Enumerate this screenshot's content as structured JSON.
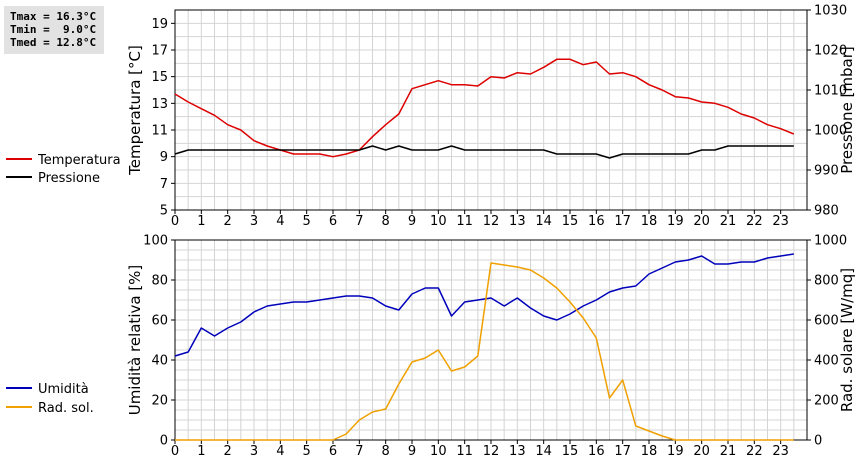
{
  "stats": {
    "tmax": "Tmax = 16.3°C",
    "tmin": "Tmin =  9.0°C",
    "tmed": "Tmed = 12.8°C"
  },
  "chart_data": [
    {
      "type": "line",
      "xlim": [
        0,
        24
      ],
      "x_ticks": [
        "0",
        "1",
        "2",
        "3",
        "4",
        "5",
        "6",
        "7",
        "8",
        "9",
        "10",
        "11",
        "12",
        "13",
        "14",
        "15",
        "16",
        "17",
        "18",
        "19",
        "20",
        "21",
        "22",
        "23"
      ],
      "ylabel_left": "Temperatura [°C]",
      "ylim_left": [
        5,
        20
      ],
      "yticks_left": [
        "5",
        "7",
        "9",
        "11",
        "13",
        "15",
        "17",
        "19"
      ],
      "ylabel_right": "Pressione [mbar]",
      "ylim_right": [
        980,
        1030
      ],
      "yticks_right": [
        "980",
        "990",
        "1000",
        "1010",
        "1020",
        "1030"
      ],
      "grid": true,
      "legend_placement": "left",
      "series": [
        {
          "name": "Temperatura",
          "axis": "left",
          "color": "#dd0000",
          "x": [
            0,
            0.5,
            1,
            1.5,
            2,
            2.5,
            3,
            3.5,
            4,
            4.5,
            5,
            5.5,
            6,
            6.5,
            7,
            7.5,
            8,
            8.5,
            9,
            9.5,
            10,
            10.5,
            11,
            11.5,
            12,
            12.5,
            13,
            13.5,
            14,
            14.5,
            15,
            15.5,
            16,
            16.5,
            17,
            17.5,
            18,
            18.5,
            19,
            19.5,
            20,
            20.5,
            21,
            21.5,
            22,
            22.5,
            23,
            23.5
          ],
          "values": [
            13.7,
            13.1,
            12.6,
            12.1,
            11.4,
            11.0,
            10.2,
            9.8,
            9.5,
            9.2,
            9.2,
            9.2,
            9.0,
            9.2,
            9.5,
            10.5,
            11.4,
            12.2,
            14.1,
            14.4,
            14.7,
            14.4,
            14.4,
            14.3,
            15.0,
            14.9,
            15.3,
            15.2,
            15.7,
            16.3,
            16.3,
            15.9,
            16.1,
            15.2,
            15.3,
            15.0,
            14.4,
            14.0,
            13.5,
            13.4,
            13.1,
            13.0,
            12.7,
            12.2,
            11.9,
            11.4,
            11.1,
            10.7
          ]
        },
        {
          "name": "Pressione",
          "axis": "right",
          "color": "#000000",
          "x": [
            0,
            0.5,
            1,
            1.5,
            2,
            2.5,
            3,
            3.5,
            4,
            4.5,
            5,
            5.5,
            6,
            6.5,
            7,
            7.5,
            8,
            8.5,
            9,
            9.5,
            10,
            10.5,
            11,
            11.5,
            12,
            12.5,
            13,
            13.5,
            14,
            14.5,
            15,
            15.5,
            16,
            16.5,
            17,
            17.5,
            18,
            18.5,
            19,
            19.5,
            20,
            20.5,
            21,
            21.5,
            22,
            22.5,
            23,
            23.5
          ],
          "values": [
            994,
            995,
            995,
            995,
            995,
            995,
            995,
            995,
            995,
            995,
            995,
            995,
            995,
            995,
            995,
            996,
            995,
            996,
            995,
            995,
            995,
            996,
            995,
            995,
            995,
            995,
            995,
            995,
            995,
            994,
            994,
            994,
            994,
            993,
            994,
            994,
            994,
            994,
            994,
            994,
            995,
            995,
            996,
            996,
            996,
            996,
            996,
            996
          ]
        }
      ]
    },
    {
      "type": "line",
      "xlim": [
        0,
        24
      ],
      "x_ticks": [
        "0",
        "1",
        "2",
        "3",
        "4",
        "5",
        "6",
        "7",
        "8",
        "9",
        "10",
        "11",
        "12",
        "13",
        "14",
        "15",
        "16",
        "17",
        "18",
        "19",
        "20",
        "21",
        "22",
        "23"
      ],
      "ylabel_left": "Umidità relativa [%]",
      "ylim_left": [
        0,
        100
      ],
      "yticks_left": [
        "0",
        "20",
        "40",
        "60",
        "80",
        "100"
      ],
      "ylabel_right": "Rad. solare [W/mq]",
      "ylim_right": [
        0,
        1000
      ],
      "yticks_right": [
        "0",
        "200",
        "400",
        "600",
        "800",
        "1000"
      ],
      "grid": true,
      "legend_placement": "left",
      "series": [
        {
          "name": "Umidità",
          "axis": "left",
          "color": "#0000bb",
          "x": [
            0,
            0.5,
            1,
            1.5,
            2,
            2.5,
            3,
            3.5,
            4,
            4.5,
            5,
            5.5,
            6,
            6.5,
            7,
            7.5,
            8,
            8.5,
            9,
            9.5,
            10,
            10.5,
            11,
            11.5,
            12,
            12.5,
            13,
            13.5,
            14,
            14.5,
            15,
            15.5,
            16,
            16.5,
            17,
            17.5,
            18,
            18.5,
            19,
            19.5,
            20,
            20.5,
            21,
            21.5,
            22,
            22.5,
            23,
            23.5
          ],
          "values": [
            42,
            44,
            56,
            52,
            56,
            59,
            64,
            67,
            68,
            69,
            69,
            70,
            71,
            72,
            72,
            71,
            67,
            65,
            73,
            76,
            76,
            62,
            69,
            70,
            71,
            67,
            71,
            66,
            62,
            60,
            63,
            67,
            70,
            74,
            76,
            77,
            83,
            86,
            89,
            90,
            92,
            88,
            88,
            89,
            89,
            91,
            92,
            93
          ]
        },
        {
          "name": "Rad. sol.",
          "axis": "right",
          "color": "#f0a000",
          "x": [
            0,
            0.5,
            1,
            1.5,
            2,
            2.5,
            3,
            3.5,
            4,
            4.5,
            5,
            5.5,
            6,
            6.5,
            7,
            7.5,
            8,
            8.5,
            9,
            9.5,
            10,
            10.5,
            11,
            11.5,
            12,
            12.5,
            13,
            13.5,
            14,
            14.5,
            15,
            15.5,
            16,
            16.5,
            17,
            17.5,
            18,
            18.5,
            19,
            19.5,
            20,
            20.5,
            21,
            21.5,
            22,
            22.5,
            23,
            23.5
          ],
          "values": [
            0,
            0,
            0,
            0,
            0,
            0,
            0,
            0,
            0,
            0,
            0,
            0,
            0,
            30,
            100,
            140,
            155,
            280,
            390,
            410,
            450,
            345,
            365,
            420,
            885,
            875,
            865,
            850,
            810,
            760,
            690,
            610,
            510,
            210,
            300,
            70,
            45,
            20,
            0,
            0,
            0,
            0,
            0,
            0,
            0,
            0,
            0,
            0
          ]
        }
      ]
    }
  ]
}
